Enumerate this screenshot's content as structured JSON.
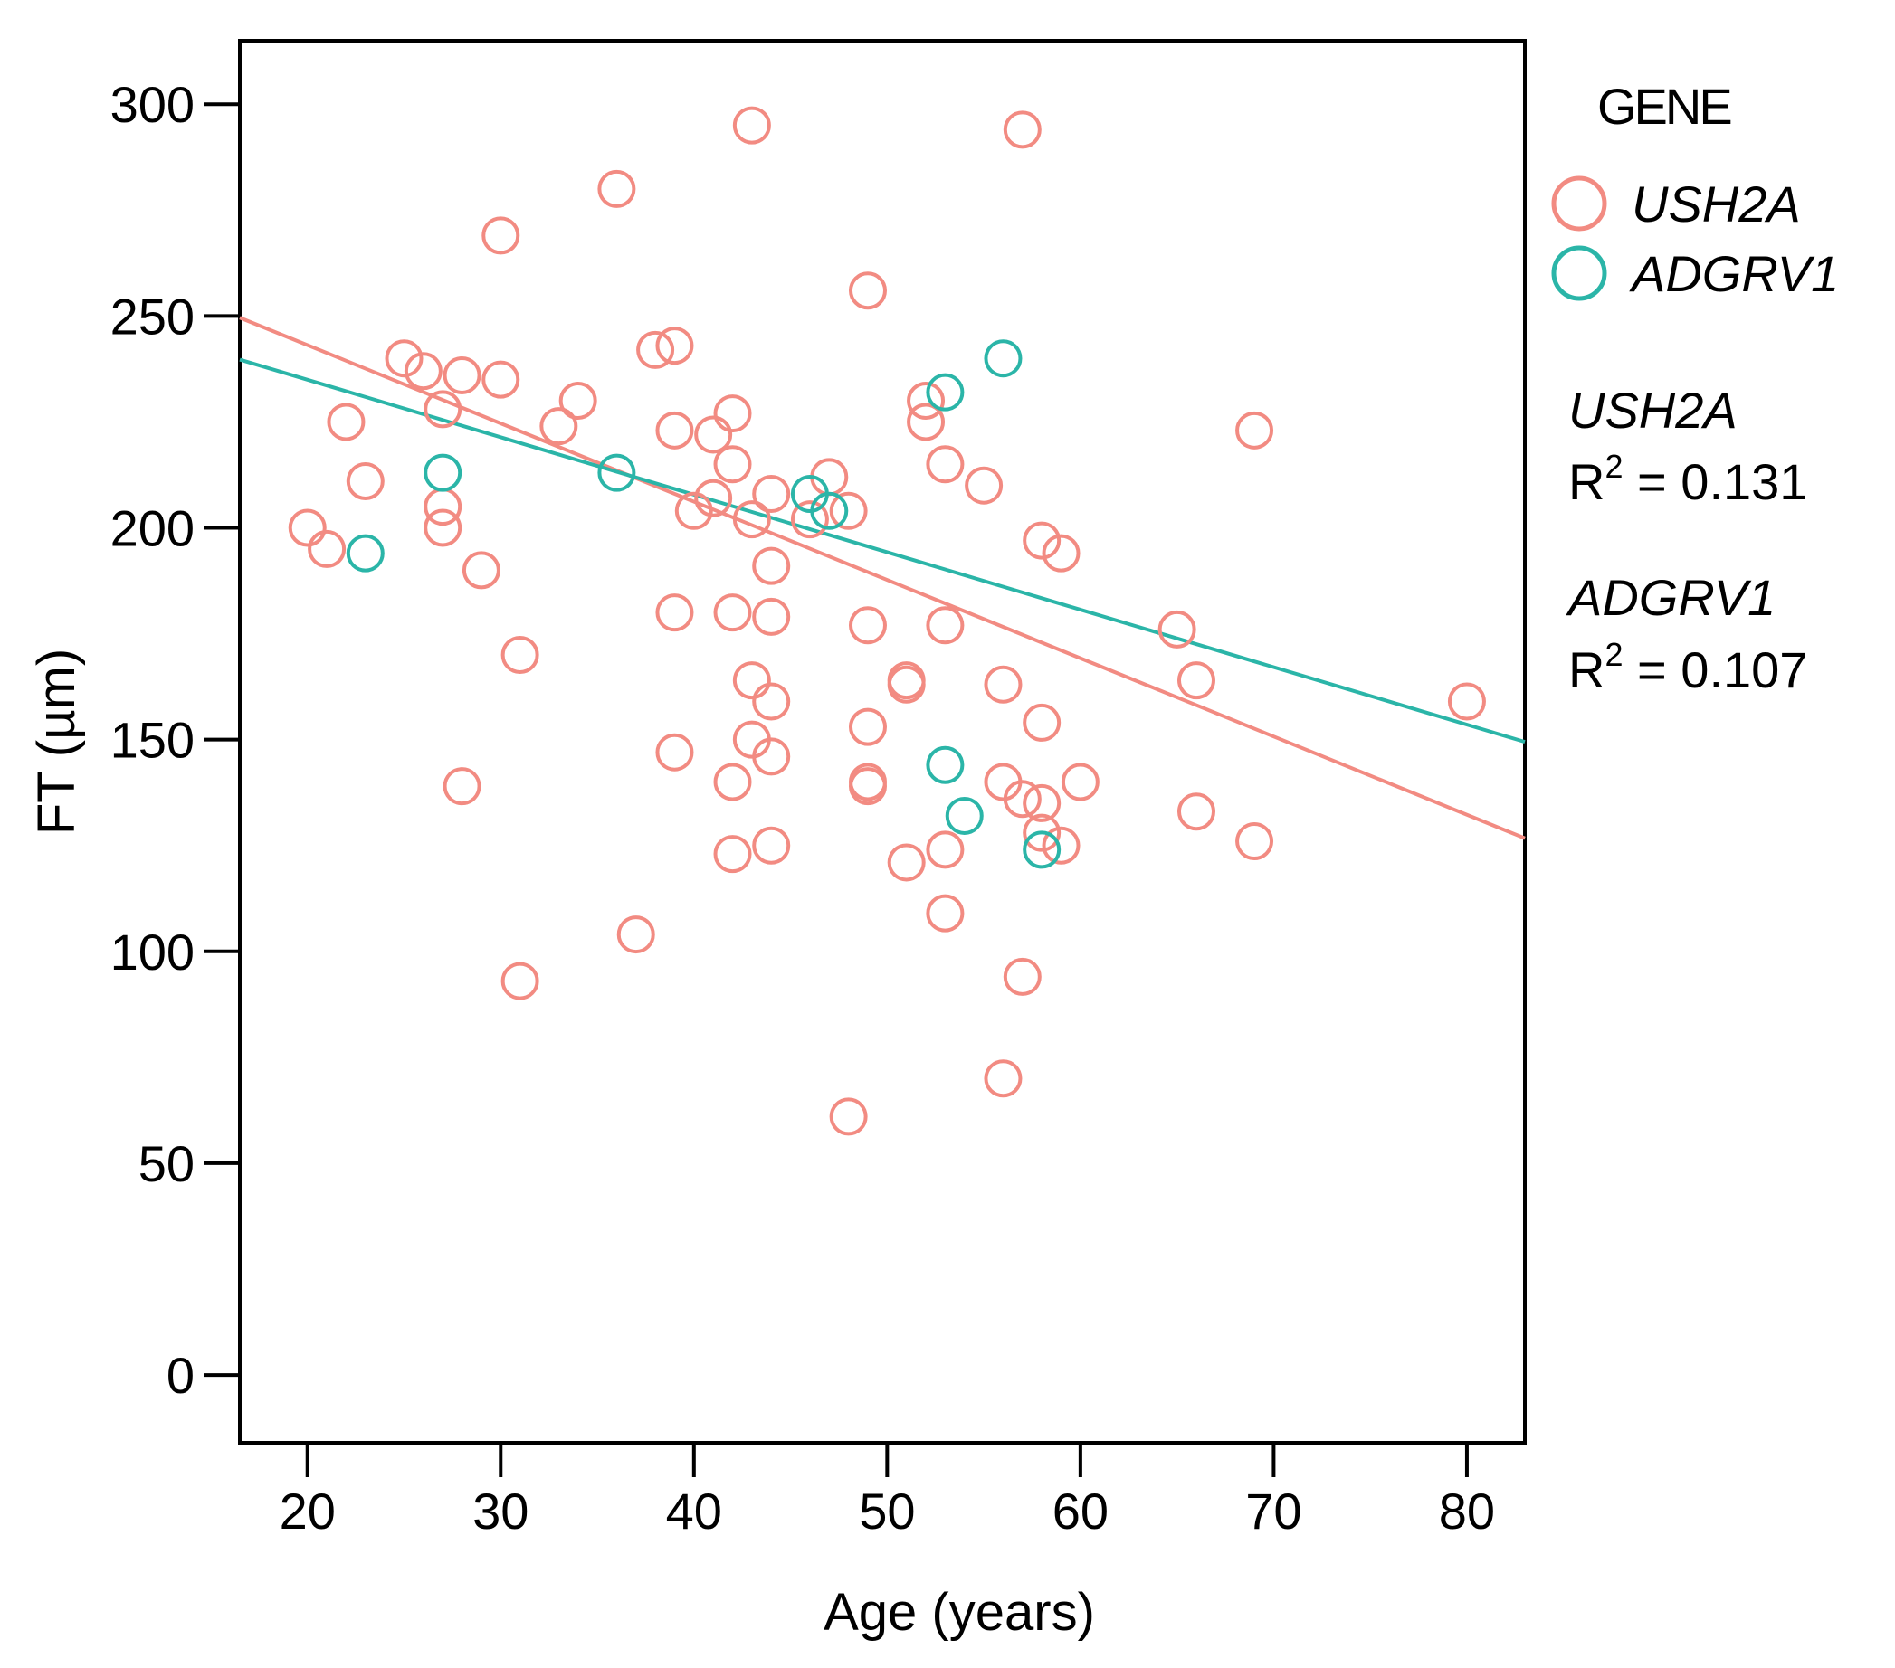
{
  "chart_data": {
    "type": "scatter",
    "title": "",
    "xlabel": "Age (years)",
    "ylabel": "FT (µm)",
    "xlim": [
      16.5,
      83
    ],
    "ylim": [
      -16,
      315
    ],
    "x_ticks": [
      20,
      30,
      40,
      50,
      60,
      70,
      80
    ],
    "y_ticks": [
      0,
      50,
      100,
      150,
      200,
      250,
      300
    ],
    "grid": false,
    "legend": {
      "title": "GENE",
      "position": "right",
      "entries": [
        "USH2A",
        "ADGRV1"
      ]
    },
    "series": [
      {
        "name": "USH2A",
        "color": "#f28b82",
        "points": [
          [
            20,
            200
          ],
          [
            21,
            195
          ],
          [
            22,
            225
          ],
          [
            23,
            211
          ],
          [
            25,
            240
          ],
          [
            26,
            237
          ],
          [
            27,
            228
          ],
          [
            27,
            205
          ],
          [
            27,
            200
          ],
          [
            28,
            236
          ],
          [
            28,
            139
          ],
          [
            29,
            190
          ],
          [
            30,
            235
          ],
          [
            30,
            269
          ],
          [
            31,
            170
          ],
          [
            31,
            93
          ],
          [
            33,
            224
          ],
          [
            34,
            230
          ],
          [
            36,
            280
          ],
          [
            37,
            104
          ],
          [
            38,
            242
          ],
          [
            39,
            243
          ],
          [
            39,
            223
          ],
          [
            39,
            180
          ],
          [
            39,
            147
          ],
          [
            40,
            204
          ],
          [
            41,
            207
          ],
          [
            41,
            222
          ],
          [
            42,
            227
          ],
          [
            42,
            215
          ],
          [
            42,
            180
          ],
          [
            42,
            140
          ],
          [
            42,
            123
          ],
          [
            43,
            295
          ],
          [
            43,
            202
          ],
          [
            43,
            164
          ],
          [
            43,
            150
          ],
          [
            44,
            208
          ],
          [
            44,
            191
          ],
          [
            44,
            179
          ],
          [
            44,
            159
          ],
          [
            44,
            146
          ],
          [
            44,
            125
          ],
          [
            46,
            202
          ],
          [
            47,
            212
          ],
          [
            48,
            204
          ],
          [
            48,
            61
          ],
          [
            49,
            256
          ],
          [
            49,
            177
          ],
          [
            49,
            153
          ],
          [
            49,
            140
          ],
          [
            49,
            139
          ],
          [
            51,
            164
          ],
          [
            51,
            163
          ],
          [
            51,
            121
          ],
          [
            52,
            230
          ],
          [
            52,
            225
          ],
          [
            53,
            215
          ],
          [
            53,
            177
          ],
          [
            53,
            124
          ],
          [
            53,
            109
          ],
          [
            55,
            210
          ],
          [
            56,
            163
          ],
          [
            56,
            140
          ],
          [
            56,
            70
          ],
          [
            57,
            294
          ],
          [
            57,
            136
          ],
          [
            57,
            94
          ],
          [
            58,
            197
          ],
          [
            58,
            154
          ],
          [
            58,
            135
          ],
          [
            58,
            128
          ],
          [
            59,
            194
          ],
          [
            59,
            125
          ],
          [
            60,
            140
          ],
          [
            65,
            176
          ],
          [
            66,
            164
          ],
          [
            66,
            133
          ],
          [
            69,
            223
          ],
          [
            69,
            126
          ],
          [
            80,
            159
          ]
        ],
        "fit": {
          "r2_label": "R² = 0.131",
          "r2": 0.131,
          "intercept": 280.1,
          "slope": -1.848
        }
      },
      {
        "name": "ADGRV1",
        "color": "#2bb5a8",
        "points": [
          [
            23,
            194
          ],
          [
            27,
            213
          ],
          [
            36,
            213
          ],
          [
            46,
            208
          ],
          [
            47,
            204
          ],
          [
            53,
            232
          ],
          [
            53,
            144
          ],
          [
            54,
            132
          ],
          [
            56,
            240
          ],
          [
            58,
            124
          ]
        ],
        "fit": {
          "r2_label": "R² = 0.107",
          "r2": 0.107,
          "intercept": 262.1,
          "slope": -1.357
        }
      }
    ]
  },
  "annotations": {
    "ush2a_name": "USH2A",
    "ush2a_r2_prefix": "R",
    "ush2a_r2_sup": "2",
    "ush2a_r2_value": " = 0.131",
    "adgrv1_name": "ADGRV1",
    "adgrv1_r2_prefix": "R",
    "adgrv1_r2_sup": "2",
    "adgrv1_r2_value": " = 0.107"
  }
}
